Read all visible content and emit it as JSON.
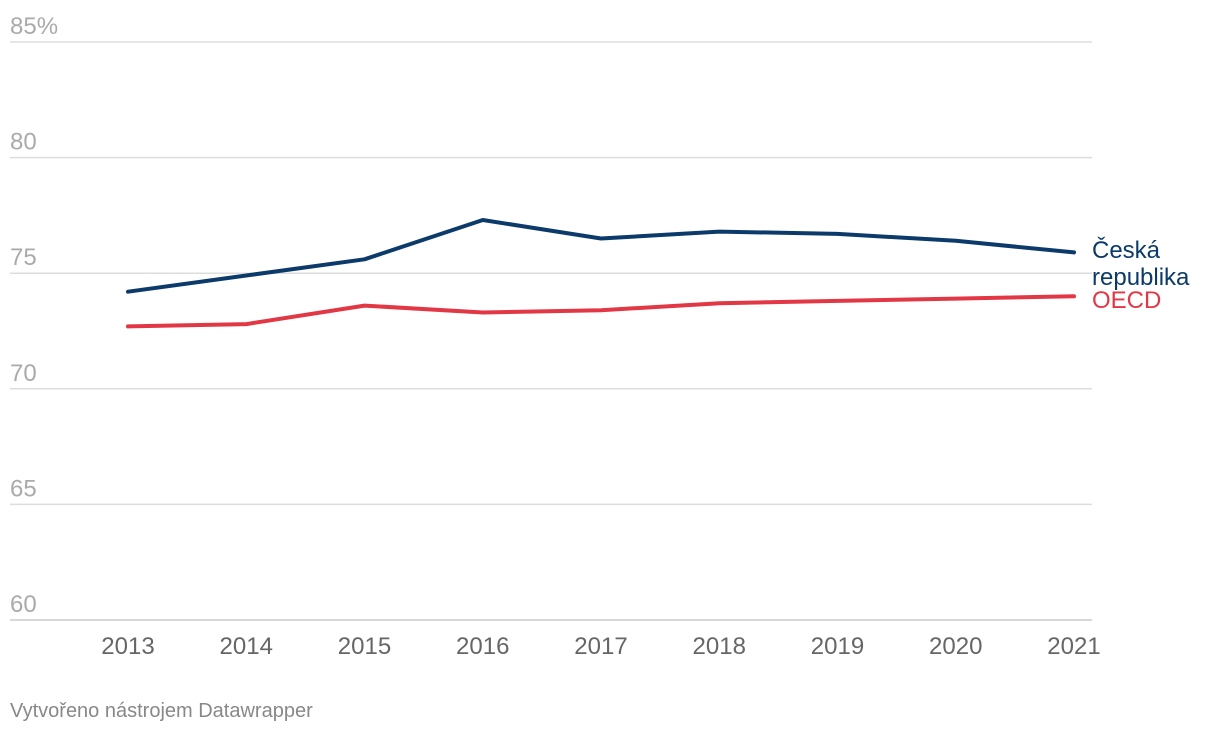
{
  "chart_data": {
    "type": "line",
    "title": "",
    "xlabel": "",
    "ylabel": "",
    "x": [
      2013,
      2014,
      2015,
      2016,
      2017,
      2018,
      2019,
      2020,
      2021
    ],
    "x_tick_labels": [
      "2013",
      "2014",
      "2015",
      "2016",
      "2017",
      "2018",
      "2019",
      "2020",
      "2021"
    ],
    "ylim": [
      60,
      85
    ],
    "y_ticks": [
      60,
      65,
      70,
      75,
      80,
      85
    ],
    "y_tick_labels": [
      "60",
      "65",
      "70",
      "75",
      "80",
      "85%"
    ],
    "grid": true,
    "legend": "direct-labels-right",
    "series": [
      {
        "name": "Česká republika",
        "label_lines": [
          "Česká",
          "republika"
        ],
        "color": "#0b3a6b",
        "values": [
          74.2,
          74.9,
          75.6,
          77.3,
          76.5,
          76.8,
          76.7,
          76.4,
          75.9
        ]
      },
      {
        "name": "OECD",
        "label_lines": [
          "OECD"
        ],
        "color": "#e23744",
        "values": [
          72.7,
          72.8,
          73.6,
          73.3,
          73.4,
          73.7,
          73.8,
          73.9,
          74.0
        ]
      }
    ]
  },
  "footer": {
    "credit": "Vytvořeno nástrojem Datawrapper"
  }
}
